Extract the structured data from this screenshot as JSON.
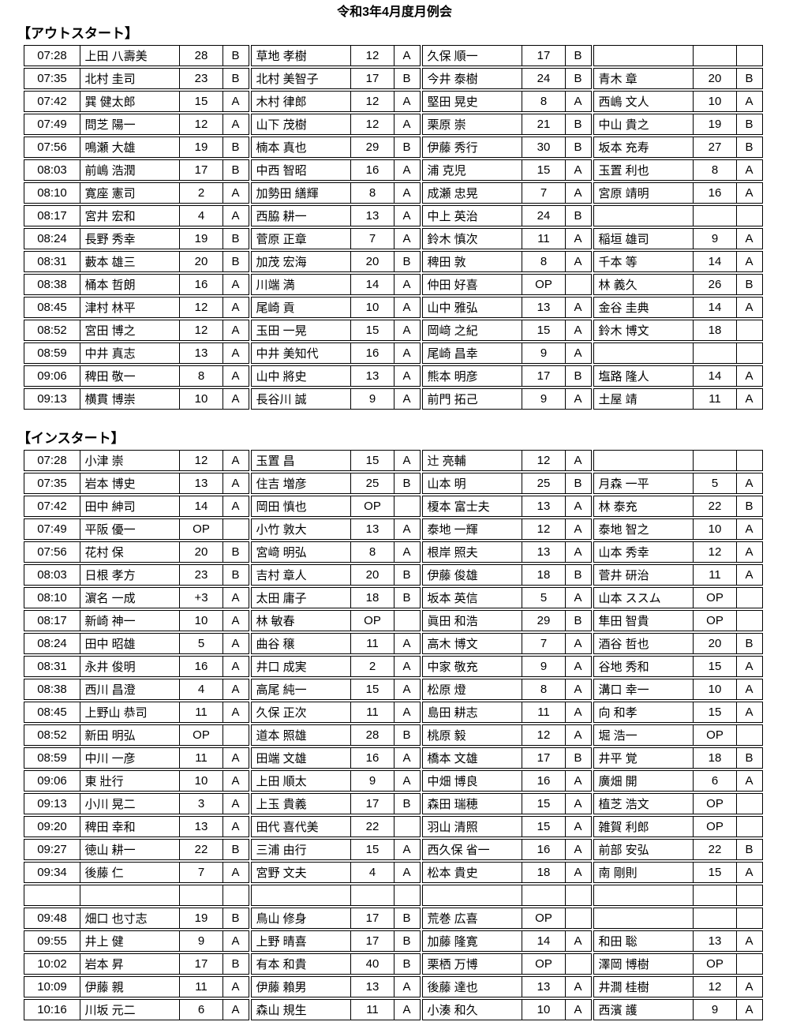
{
  "title": "令和3年4月度月例会",
  "sections": [
    {
      "label": "【アウトスタート】",
      "rows": [
        [
          "07:28",
          "上田 八壽美",
          "28",
          "B",
          "草地 孝樹",
          "12",
          "A",
          "久保 順一",
          "17",
          "B",
          "",
          "",
          ""
        ],
        [
          "07:35",
          "北村 圭司",
          "23",
          "B",
          "北村 美智子",
          "17",
          "B",
          "今井 泰樹",
          "24",
          "B",
          "青木 章",
          "20",
          "B"
        ],
        [
          "07:42",
          "巽 健太郎",
          "15",
          "A",
          "木村 律郎",
          "12",
          "A",
          "堅田 晃史",
          "8",
          "A",
          "西嶋 文人",
          "10",
          "A"
        ],
        [
          "07:49",
          "問芝 陽一",
          "12",
          "A",
          "山下 茂樹",
          "12",
          "A",
          "栗原 崇",
          "21",
          "B",
          "中山 貴之",
          "19",
          "B"
        ],
        [
          "07:56",
          "鳴瀬 大雄",
          "19",
          "B",
          "楠本 真也",
          "29",
          "B",
          "伊藤 秀行",
          "30",
          "B",
          "坂本 充寿",
          "27",
          "B"
        ],
        [
          "08:03",
          "前嶋 浩潤",
          "17",
          "B",
          "中西 智昭",
          "16",
          "A",
          "浦 克児",
          "15",
          "A",
          "玉置 利也",
          "8",
          "A"
        ],
        [
          "08:10",
          "寛座 憲司",
          "2",
          "A",
          "加勢田 繕輝",
          "8",
          "A",
          "成瀬 忠晃",
          "7",
          "A",
          "宮原 靖明",
          "16",
          "A"
        ],
        [
          "08:17",
          "宮井 宏和",
          "4",
          "A",
          "西脇 耕一",
          "13",
          "A",
          "中上 英治",
          "24",
          "B",
          "",
          "",
          ""
        ],
        [
          "08:24",
          "長野 秀幸",
          "19",
          "B",
          "菅原 正章",
          "7",
          "A",
          "鈴木 慎次",
          "11",
          "A",
          "稲垣 雄司",
          "9",
          "A"
        ],
        [
          "08:31",
          "藪本 雄三",
          "20",
          "B",
          "加茂 宏海",
          "20",
          "B",
          "稗田 敦",
          "8",
          "A",
          "千本 等",
          "14",
          "A"
        ],
        [
          "08:38",
          "桶本 哲朗",
          "16",
          "A",
          "川端 満",
          "14",
          "A",
          "仲田 好喜",
          "OP",
          "",
          "林 義久",
          "26",
          "B"
        ],
        [
          "08:45",
          "津村 林平",
          "12",
          "A",
          "尾崎 貢",
          "10",
          "A",
          "山中 雅弘",
          "13",
          "A",
          "金谷 圭典",
          "14",
          "A"
        ],
        [
          "08:52",
          "宮田 博之",
          "12",
          "A",
          "玉田 一晃",
          "15",
          "A",
          "岡﨑 之紀",
          "15",
          "A",
          "鈴木 博文",
          "18",
          ""
        ],
        [
          "08:59",
          "中井 真志",
          "13",
          "A",
          "中井 美知代",
          "16",
          "A",
          "尾崎 昌幸",
          "9",
          "A",
          "",
          "",
          ""
        ],
        [
          "09:06",
          "稗田 敬一",
          "8",
          "A",
          "山中 將史",
          "13",
          "A",
          "熊本 明彦",
          "17",
          "B",
          "塩路 隆人",
          "14",
          "A"
        ],
        [
          "09:13",
          "横貫 博崇",
          "10",
          "A",
          "長谷川 誠",
          "9",
          "A",
          "前門 拓己",
          "9",
          "A",
          "土屋 靖",
          "11",
          "A"
        ]
      ]
    },
    {
      "label": "【インスタート】",
      "rows": [
        [
          "07:28",
          "小津 崇",
          "12",
          "A",
          "玉置 昌",
          "15",
          "A",
          "辻 亮輔",
          "12",
          "A",
          "",
          "",
          ""
        ],
        [
          "07:35",
          "岩本 博史",
          "13",
          "A",
          "住吉 増彦",
          "25",
          "B",
          "山本 明",
          "25",
          "B",
          "月森 一平",
          "5",
          "A"
        ],
        [
          "07:42",
          "田中 紳司",
          "14",
          "A",
          "岡田 慎也",
          "OP",
          "",
          "榎本 富士夫",
          "13",
          "A",
          "林 泰充",
          "22",
          "B"
        ],
        [
          "07:49",
          "平阪 優一",
          "OP",
          "",
          "小竹 敦大",
          "13",
          "A",
          "泰地 一輝",
          "12",
          "A",
          "泰地 智之",
          "10",
          "A"
        ],
        [
          "07:56",
          "花村 保",
          "20",
          "B",
          "宮﨑 明弘",
          "8",
          "A",
          "根岸 照夫",
          "13",
          "A",
          "山本 秀幸",
          "12",
          "A"
        ],
        [
          "08:03",
          "日根 孝方",
          "23",
          "B",
          "吉村 章人",
          "20",
          "B",
          "伊藤 俊雄",
          "18",
          "B",
          "菅井 研治",
          "11",
          "A"
        ],
        [
          "08:10",
          "濵名 一成",
          "+3",
          "A",
          "太田 庸子",
          "18",
          "B",
          "坂本 英信",
          "5",
          "A",
          "山本 ススム",
          "OP",
          ""
        ],
        [
          "08:17",
          "新崎 神一",
          "10",
          "A",
          "林 敏春",
          "OP",
          "",
          "眞田 和浩",
          "29",
          "B",
          "隼田 智貴",
          "OP",
          ""
        ],
        [
          "08:24",
          "田中 昭雄",
          "5",
          "A",
          "曲谷 穣",
          "11",
          "A",
          "高木 博文",
          "7",
          "A",
          "酒谷 哲也",
          "20",
          "B"
        ],
        [
          "08:31",
          "永井 俊明",
          "16",
          "A",
          "井口 成実",
          "2",
          "A",
          "中家 敬充",
          "9",
          "A",
          "谷地 秀和",
          "15",
          "A"
        ],
        [
          "08:38",
          "西川 昌澄",
          "4",
          "A",
          "高尾 純一",
          "15",
          "A",
          "松原 燈",
          "8",
          "A",
          "溝口 幸一",
          "10",
          "A"
        ],
        [
          "08:45",
          "上野山 恭司",
          "11",
          "A",
          "久保 正次",
          "11",
          "A",
          "島田 耕志",
          "11",
          "A",
          "向 和孝",
          "15",
          "A"
        ],
        [
          "08:52",
          "新田 明弘",
          "OP",
          "",
          "道本 照雄",
          "28",
          "B",
          "桃原 毅",
          "12",
          "A",
          "堀 浩一",
          "OP",
          ""
        ],
        [
          "08:59",
          "中川 一彦",
          "11",
          "A",
          "田端 文雄",
          "16",
          "A",
          "橋本 文雄",
          "17",
          "B",
          "井平 覚",
          "18",
          "B"
        ],
        [
          "09:06",
          "東 壯行",
          "10",
          "A",
          "上田 順太",
          "9",
          "A",
          "中畑 博良",
          "16",
          "A",
          "廣畑 開",
          "6",
          "A"
        ],
        [
          "09:13",
          "小川 晃二",
          "3",
          "A",
          "上玉 貴義",
          "17",
          "B",
          "森田 瑞穂",
          "15",
          "A",
          "植芝 浩文",
          "OP",
          ""
        ],
        [
          "09:20",
          "稗田 幸和",
          "13",
          "A",
          "田代 喜代美",
          "22",
          "",
          "羽山 清照",
          "15",
          "A",
          "雑賀 利郎",
          "OP",
          ""
        ],
        [
          "09:27",
          "徳山 耕一",
          "22",
          "B",
          "三浦 由行",
          "15",
          "A",
          "西久保 省一",
          "16",
          "A",
          "前部 安弘",
          "22",
          "B"
        ],
        [
          "09:34",
          "後藤 仁",
          "7",
          "A",
          "宮野 文夫",
          "4",
          "A",
          "松本 貴史",
          "18",
          "A",
          "南 剛則",
          "15",
          "A"
        ],
        [
          "",
          "",
          "",
          "",
          "",
          "",
          "",
          "",
          "",
          "",
          "",
          "",
          ""
        ],
        [
          "09:48",
          "畑口 也寸志",
          "19",
          "B",
          "鳥山 修身",
          "17",
          "B",
          "荒巻 広喜",
          "OP",
          "",
          "",
          "",
          ""
        ],
        [
          "09:55",
          "井上 健",
          "9",
          "A",
          "上野 晴喜",
          "17",
          "B",
          "加藤 隆寛",
          "14",
          "A",
          "和田 聡",
          "13",
          "A"
        ],
        [
          "10:02",
          "岩本 昇",
          "17",
          "B",
          "有本 和貴",
          "40",
          "B",
          "栗栖 万博",
          "OP",
          "",
          "澤岡 博樹",
          "OP",
          ""
        ],
        [
          "10:09",
          "伊藤 親",
          "11",
          "A",
          "伊藤 賴男",
          "13",
          "A",
          "後藤 達也",
          "13",
          "A",
          "井澗 桂樹",
          "12",
          "A"
        ],
        [
          "10:16",
          "川坂 元二",
          "6",
          "A",
          "森山 規生",
          "11",
          "A",
          "小湊 和久",
          "10",
          "A",
          "西濱 護",
          "9",
          "A"
        ]
      ]
    }
  ]
}
